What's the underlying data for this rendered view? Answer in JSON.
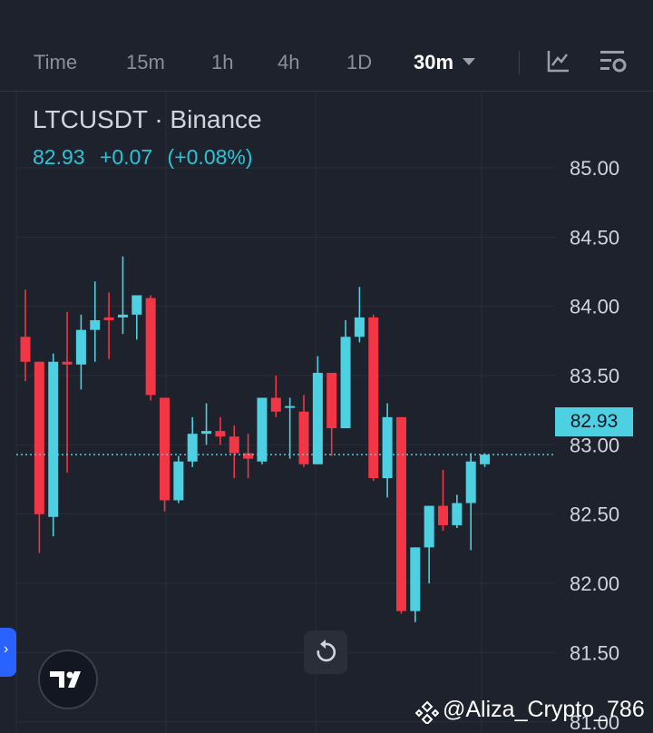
{
  "toolbar": {
    "timeframes": [
      "Time",
      "15m",
      "1h",
      "4h",
      "1D",
      "30m"
    ],
    "active": "30m",
    "icons": [
      "indicators-icon",
      "settings-icon"
    ]
  },
  "legend": {
    "symbol": "LTCUSDT · Binance",
    "last": "82.93",
    "change": "+0.07",
    "change_pct": "(+0.08%)"
  },
  "colors": {
    "up": "#4dd0e1",
    "down": "#f23645",
    "background": "#1e222d",
    "grid": "#2a2e39",
    "price_line": "#4dd0e1"
  },
  "chart_data": {
    "type": "candlestick",
    "symbol": "LTCUSDT",
    "interval": "30m",
    "ylim": [
      80.92,
      85.55
    ],
    "y_ticks": [
      85.0,
      84.5,
      84.0,
      83.5,
      83.0,
      82.5,
      82.0,
      81.5,
      81.0
    ],
    "y_tick_labels": [
      "85.00",
      "84.50",
      "84.00",
      "83.50",
      "83.00",
      "82.50",
      "82.00",
      "81.50",
      "81.00"
    ],
    "last_price": 82.93,
    "last_price_label": "82.93",
    "candles": [
      {
        "o": 83.78,
        "h": 84.12,
        "l": 83.46,
        "c": 83.6
      },
      {
        "o": 83.6,
        "h": 83.6,
        "l": 82.22,
        "c": 82.5
      },
      {
        "o": 82.48,
        "h": 83.66,
        "l": 82.34,
        "c": 83.6
      },
      {
        "o": 83.6,
        "h": 83.96,
        "l": 82.8,
        "c": 83.58
      },
      {
        "o": 83.58,
        "h": 83.94,
        "l": 83.4,
        "c": 83.83
      },
      {
        "o": 83.83,
        "h": 84.18,
        "l": 83.6,
        "c": 83.9
      },
      {
        "o": 83.92,
        "h": 84.1,
        "l": 83.62,
        "c": 83.9
      },
      {
        "o": 83.92,
        "h": 84.36,
        "l": 83.8,
        "c": 83.94
      },
      {
        "o": 83.94,
        "h": 84.08,
        "l": 83.76,
        "c": 84.08
      },
      {
        "o": 84.06,
        "h": 84.08,
        "l": 83.32,
        "c": 83.36
      },
      {
        "o": 83.34,
        "h": 83.34,
        "l": 82.52,
        "c": 82.6
      },
      {
        "o": 82.6,
        "h": 82.92,
        "l": 82.58,
        "c": 82.88
      },
      {
        "o": 82.88,
        "h": 83.2,
        "l": 82.84,
        "c": 83.08
      },
      {
        "o": 83.08,
        "h": 83.3,
        "l": 83.0,
        "c": 83.1
      },
      {
        "o": 83.1,
        "h": 83.2,
        "l": 83.0,
        "c": 83.06
      },
      {
        "o": 83.06,
        "h": 83.14,
        "l": 82.76,
        "c": 82.94
      },
      {
        "o": 82.94,
        "h": 83.08,
        "l": 82.76,
        "c": 82.9
      },
      {
        "o": 82.88,
        "h": 83.34,
        "l": 82.86,
        "c": 83.34
      },
      {
        "o": 83.34,
        "h": 83.5,
        "l": 83.2,
        "c": 83.24
      },
      {
        "o": 83.28,
        "h": 83.34,
        "l": 82.9,
        "c": 83.28
      },
      {
        "o": 83.24,
        "h": 83.36,
        "l": 82.84,
        "c": 82.86
      },
      {
        "o": 82.86,
        "h": 83.64,
        "l": 82.86,
        "c": 83.52
      },
      {
        "o": 83.52,
        "h": 83.52,
        "l": 82.92,
        "c": 83.12
      },
      {
        "o": 83.12,
        "h": 83.9,
        "l": 83.12,
        "c": 83.78
      },
      {
        "o": 83.78,
        "h": 84.14,
        "l": 83.74,
        "c": 83.92
      },
      {
        "o": 83.92,
        "h": 83.94,
        "l": 82.74,
        "c": 82.76
      },
      {
        "o": 82.76,
        "h": 83.3,
        "l": 82.62,
        "c": 83.2
      },
      {
        "o": 83.2,
        "h": 83.2,
        "l": 81.78,
        "c": 81.8
      },
      {
        "o": 81.8,
        "h": 82.26,
        "l": 81.72,
        "c": 82.26
      },
      {
        "o": 82.26,
        "h": 82.56,
        "l": 82.0,
        "c": 82.56
      },
      {
        "o": 82.56,
        "h": 82.82,
        "l": 82.38,
        "c": 82.42
      },
      {
        "o": 82.42,
        "h": 82.64,
        "l": 82.4,
        "c": 82.58
      },
      {
        "o": 82.58,
        "h": 82.94,
        "l": 82.24,
        "c": 82.88
      },
      {
        "o": 82.86,
        "h": 82.94,
        "l": 82.84,
        "c": 82.93
      }
    ]
  },
  "watermark": "@Aliza_Crypto_786",
  "buttons": {
    "reset": "reset-chart-button",
    "logo": "tradingview-logo"
  }
}
